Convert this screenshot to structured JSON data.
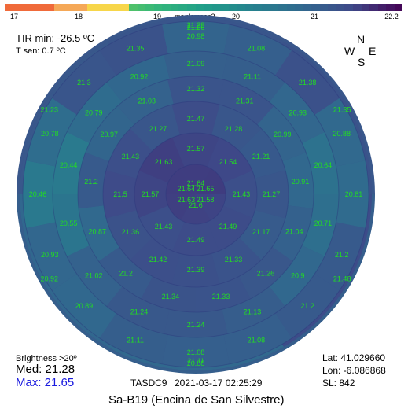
{
  "colorbar": {
    "ticks": [
      "17",
      "18",
      "19",
      "20",
      "21",
      "22.2"
    ],
    "tick_values": [
      17,
      18,
      19,
      20,
      21,
      22.2
    ],
    "unit": "mag/arcsec2",
    "colormap": "viridis",
    "range": [
      17,
      22.2
    ]
  },
  "info": {
    "tir_min": "TIR min: -26.5 ºC",
    "t_sen": "T sen: 0.7 ºC",
    "brightness": "Brightness >20º",
    "med": "Med: 21.28",
    "max": "Max: 21.65"
  },
  "compass": {
    "n": "N",
    "s": "S",
    "e": "E",
    "w": "W"
  },
  "location": {
    "lat": "Lat: 41.029660",
    "lon": "Lon: -6.086868",
    "sl": "SL:  842"
  },
  "footer": {
    "device": "TASDC9",
    "datetime": "2021-03-17  02:25:29",
    "title": "Sa-B19 (Encina de San Silvestre)"
  },
  "colors": {
    "label": "#22dd22",
    "max_text": "#1a1adf"
  },
  "chart_data": {
    "type": "heatmap",
    "projection": "polar all-sky map, zenith at centre",
    "rings": [
      {
        "values": [
          21.64,
          21.65,
          21.58,
          21.6,
          21.63,
          21.64
        ]
      },
      {
        "values": [
          21.57,
          21.54,
          21.43,
          21.49,
          21.49,
          21.43,
          21.57,
          21.63
        ]
      },
      {
        "values": [
          21.47,
          21.28,
          21.21,
          21.27,
          21.17,
          21.33,
          21.39,
          21.42,
          21.36,
          21.5,
          21.43,
          21.27
        ]
      },
      {
        "values": [
          21.32,
          21.31,
          20.99,
          20.91,
          21.04,
          21.26,
          21.33,
          21.34,
          21.2,
          20.87,
          21.2,
          20.97,
          21.03
        ]
      },
      {
        "values": [
          21.09,
          21.11,
          20.93,
          20.64,
          20.71,
          20.9,
          21.13,
          21.24,
          21.24,
          21.02,
          20.55,
          20.44,
          20.79,
          20.92
        ]
      },
      {
        "values": [
          20.98,
          21.08,
          21.38,
          20.88,
          20.81,
          21.2,
          21.2,
          21.08,
          21.08,
          21.11,
          20.89,
          20.93,
          20.46,
          20.78,
          21.3,
          21.35
        ]
      },
      {
        "values": [
          21.29,
          21.35,
          21.48,
          20.88,
          20.92,
          21.23
        ]
      },
      {
        "values": [
          21.26,
          21.11
        ]
      }
    ]
  }
}
